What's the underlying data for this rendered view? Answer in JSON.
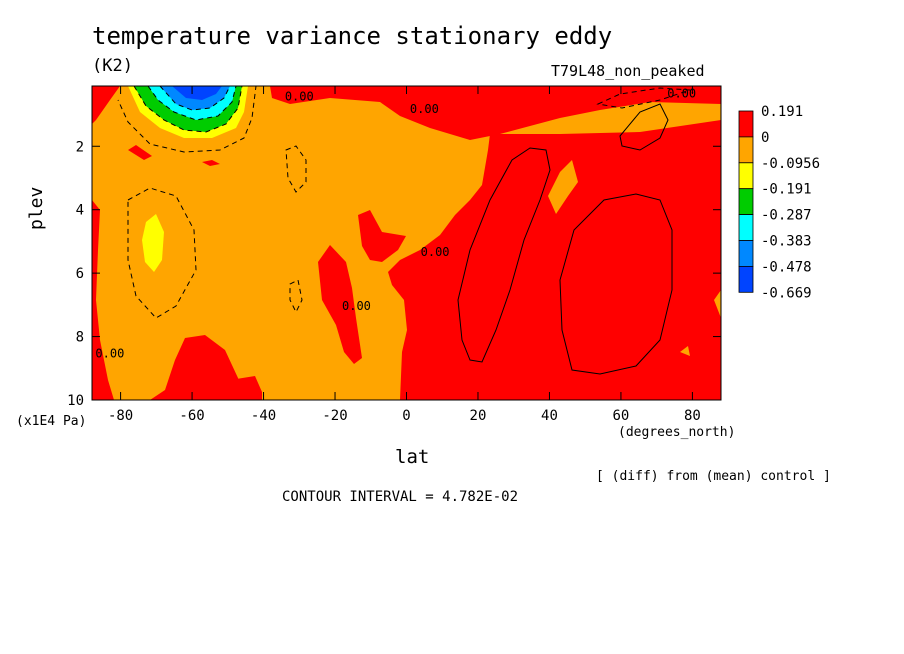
{
  "chart_data": {
    "type": "heatmap",
    "title": "temperature variance stationary eddy",
    "units": "(K2)",
    "run_label": "T79L48_non_peaked",
    "xlabel": "lat",
    "x_units": "(degrees_north)",
    "ylabel": "plev",
    "y_units": "(x1E4 Pa)",
    "x_ticks": [
      -80,
      -60,
      -40,
      -20,
      0,
      20,
      40,
      60,
      80
    ],
    "x_tick_labels": [
      "-80",
      "-60",
      "-40",
      "-20",
      "0",
      "20",
      "40",
      "60",
      "80"
    ],
    "y_ticks": [
      2,
      4,
      6,
      8,
      10
    ],
    "y_tick_labels": [
      "2",
      "4",
      "6",
      "8",
      "10"
    ],
    "xlim": [
      -88,
      88
    ],
    "ylim": [
      10,
      0.1
    ],
    "y_inverted": true,
    "colorbar": {
      "levels": [
        "0.191",
        "0",
        "-0.0956",
        "-0.191",
        "-0.287",
        "-0.383",
        "-0.478",
        "-0.669"
      ],
      "colors": [
        "#ff0000",
        "#ffa500",
        "#ffff00",
        "#00cc00",
        "#00ffff",
        "#0088ff",
        "#0044ff"
      ]
    },
    "contour_labels": [
      {
        "text": "0.00",
        "lat": -30,
        "plev": 0.4
      },
      {
        "text": "0.00",
        "lat": 5,
        "plev": 0.8
      },
      {
        "text": "0.00",
        "lat": 77,
        "plev": 0.3
      },
      {
        "text": "0.00",
        "lat": 8,
        "plev": 5.3
      },
      {
        "text": "0.00",
        "lat": -14,
        "plev": 7.0
      },
      {
        "text": "0.00",
        "lat": -83,
        "plev": 8.5
      }
    ],
    "annotation_note": "[ (diff) from (mean) control ]",
    "contour_interval": "CONTOUR INTERVAL = 4.782E-02",
    "grid": false,
    "legend_position": "right"
  }
}
